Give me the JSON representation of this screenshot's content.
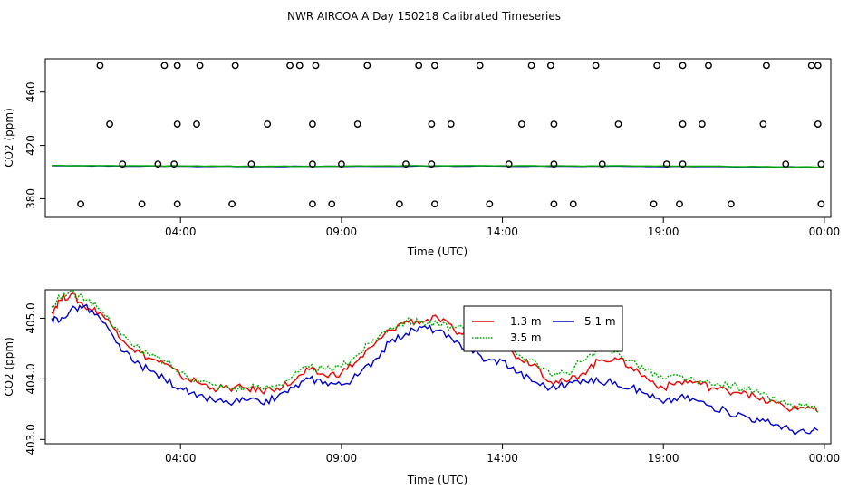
{
  "figure_title": "NWR AIRCOA A  Day 150218  Calibrated Timeseries",
  "chart_data": [
    {
      "type": "scatter",
      "title": "NWR AIRCOA A  Day 150218  Calibrated Timeseries",
      "xlabel": "Time (UTC)",
      "ylabel": "CO2 (ppm)",
      "xlim": [
        -0.2,
        24.2
      ],
      "ylim": [
        366,
        485
      ],
      "xticks": [
        4,
        9,
        14,
        19,
        24
      ],
      "xtick_labels": [
        "04:00",
        "09:00",
        "14:00",
        "19:00",
        "00:00"
      ],
      "yticks": [
        380,
        420,
        460
      ],
      "ytick_labels": [
        "380",
        "420",
        "460"
      ],
      "points": {
        "x": [
          1.5,
          3.5,
          4.6,
          5.7,
          7.7,
          8.2,
          9.8,
          11.4,
          13.3,
          14.9,
          16.9,
          18.8,
          20.4,
          22.2,
          0.9,
          2.8,
          3.9,
          5.6,
          8.1,
          8.7,
          10.8,
          11.9,
          13.6,
          15.6,
          16.2,
          18.7,
          19.5,
          21.1,
          23.9,
          2.2,
          3.3,
          3.8,
          6.2,
          8.1,
          9.0,
          11.0,
          11.8,
          14.2,
          15.6,
          17.1,
          19.1,
          19.6,
          22.8,
          23.9,
          1.8,
          3.9,
          4.5,
          6.7,
          8.1,
          9.5,
          11.8,
          12.4,
          14.6,
          15.6,
          17.6,
          19.6,
          20.2,
          22.1,
          23.8,
          3.9,
          7.4,
          11.9,
          15.5,
          19.6,
          23.6,
          23.8
        ],
        "y": [
          480,
          480,
          480,
          480,
          480,
          480,
          480,
          480,
          480,
          480,
          480,
          480,
          480,
          480,
          376,
          376,
          376,
          376,
          376,
          376,
          376,
          376,
          376,
          376,
          376,
          376,
          376,
          376,
          376,
          406,
          406,
          406,
          406,
          406,
          406,
          406,
          406,
          406,
          406,
          406,
          406,
          406,
          406,
          406,
          436,
          436,
          436,
          436,
          436,
          436,
          436,
          436,
          436,
          436,
          436,
          436,
          436,
          436,
          436,
          480,
          480,
          480,
          480,
          480,
          480,
          480
        ]
      },
      "series": [
        {
          "name": "5.1 m",
          "color": "#0000cc",
          "x": [
            0.0,
            2.0,
            4.0,
            6.0,
            8.0,
            10.0,
            12.0,
            14.0,
            16.0,
            18.0,
            20.0,
            22.0,
            24.0
          ],
          "values": [
            404.7,
            404.6,
            404.4,
            404.2,
            404.2,
            404.3,
            404.5,
            404.5,
            404.4,
            404.3,
            404.1,
            403.9,
            403.7
          ]
        },
        {
          "name": "3.5 m",
          "color": "#00aa00",
          "x": [
            0.0,
            2.0,
            4.0,
            6.0,
            8.0,
            10.0,
            12.0,
            14.0,
            16.0,
            18.0,
            20.0,
            22.0,
            24.0
          ],
          "values": [
            404.9,
            404.8,
            404.6,
            404.4,
            404.4,
            404.6,
            404.8,
            404.8,
            404.6,
            404.6,
            404.4,
            404.1,
            403.8
          ]
        }
      ]
    },
    {
      "type": "line",
      "xlabel": "Time (UTC)",
      "ylabel": "CO2 (ppm)",
      "xlim": [
        -0.2,
        24.2
      ],
      "ylim": [
        402.93,
        405.47
      ],
      "xticks": [
        4,
        9,
        14,
        19,
        24
      ],
      "xtick_labels": [
        "04:00",
        "09:00",
        "14:00",
        "19:00",
        "00:00"
      ],
      "yticks": [
        403.0,
        404.0,
        405.0
      ],
      "ytick_labels": [
        "403.0",
        "404.0",
        "405.0"
      ],
      "legend": {
        "placement": "top-center",
        "entries": [
          {
            "label": "1.3 m",
            "color": "#ee0000",
            "style": "solid"
          },
          {
            "label": "5.1 m",
            "color": "#0000cc",
            "style": "solid"
          },
          {
            "label": "3.5 m",
            "color": "#00aa00",
            "style": "dotted"
          }
        ]
      },
      "series": [
        {
          "name": "1.3 m",
          "color": "#ee0000",
          "x": [
            0.0,
            0.25,
            0.6,
            1.0,
            1.5,
            2.0,
            2.5,
            3.0,
            3.5,
            4.0,
            4.5,
            5.0,
            5.5,
            6.0,
            6.5,
            7.0,
            7.5,
            8.0,
            8.5,
            9.0,
            9.5,
            10.0,
            10.5,
            11.0,
            11.5,
            12.0,
            12.5,
            13.0,
            13.5,
            14.0,
            14.5,
            15.0,
            15.5,
            16.0,
            16.5,
            17.0,
            17.5,
            18.0,
            18.5,
            19.0,
            19.5,
            20.0,
            20.5,
            21.0,
            21.5,
            22.0,
            22.5,
            23.0,
            23.5,
            23.8
          ],
          "values": [
            405.1,
            405.3,
            405.4,
            405.2,
            405.1,
            404.8,
            404.5,
            404.35,
            404.25,
            404.05,
            403.95,
            403.85,
            403.85,
            403.85,
            403.8,
            403.85,
            403.95,
            404.15,
            404.05,
            404.1,
            404.3,
            404.55,
            404.8,
            404.95,
            404.95,
            405.0,
            404.8,
            404.7,
            404.55,
            404.55,
            404.35,
            404.25,
            403.95,
            403.95,
            404.1,
            404.3,
            404.35,
            404.2,
            404.0,
            403.85,
            403.95,
            403.95,
            403.85,
            403.8,
            403.8,
            403.65,
            403.6,
            403.5,
            403.55,
            403.45
          ]
        },
        {
          "name": "5.1 m",
          "color": "#0000cc",
          "x": [
            0.0,
            0.25,
            0.6,
            1.0,
            1.5,
            2.0,
            2.5,
            3.0,
            3.5,
            4.0,
            4.5,
            5.0,
            5.5,
            6.0,
            6.5,
            7.0,
            7.5,
            8.0,
            8.5,
            9.0,
            9.5,
            10.0,
            10.5,
            11.0,
            11.5,
            12.0,
            12.5,
            13.0,
            13.5,
            14.0,
            14.5,
            15.0,
            15.5,
            16.0,
            16.5,
            17.0,
            17.5,
            18.0,
            18.5,
            19.0,
            19.5,
            20.0,
            20.5,
            21.0,
            21.5,
            22.0,
            22.5,
            23.0,
            23.5,
            23.8
          ],
          "values": [
            405.0,
            404.95,
            405.15,
            405.2,
            405.0,
            404.6,
            404.3,
            404.15,
            404.0,
            403.85,
            403.7,
            403.65,
            403.6,
            403.65,
            403.6,
            403.7,
            403.85,
            404.0,
            403.95,
            403.9,
            404.05,
            404.3,
            404.6,
            404.75,
            404.85,
            404.8,
            404.6,
            404.5,
            404.3,
            404.3,
            404.1,
            403.95,
            403.85,
            403.9,
            404.0,
            403.95,
            403.95,
            403.85,
            403.75,
            403.6,
            403.7,
            403.65,
            403.55,
            403.45,
            403.4,
            403.3,
            403.25,
            403.15,
            403.1,
            403.15
          ]
        },
        {
          "name": "3.5 m",
          "color": "#00aa00",
          "x": [
            0.0,
            0.25,
            0.6,
            1.0,
            1.5,
            2.0,
            2.5,
            3.0,
            3.5,
            4.0,
            4.5,
            5.0,
            5.5,
            6.0,
            6.5,
            7.0,
            7.5,
            8.0,
            8.5,
            9.0,
            9.5,
            10.0,
            10.5,
            11.0,
            11.5,
            12.0,
            12.5,
            13.0,
            13.5,
            14.0,
            14.5,
            15.0,
            15.5,
            16.0,
            16.5,
            17.0,
            17.5,
            18.0,
            18.5,
            19.0,
            19.5,
            20.0,
            20.5,
            21.0,
            21.5,
            22.0,
            22.5,
            23.0,
            23.5,
            23.8
          ],
          "values": [
            405.2,
            405.35,
            405.45,
            405.3,
            405.15,
            404.85,
            404.55,
            404.4,
            404.3,
            404.1,
            404.0,
            403.9,
            403.85,
            403.85,
            403.85,
            403.9,
            404.05,
            404.2,
            404.15,
            404.2,
            404.4,
            404.65,
            404.85,
            404.95,
            404.95,
            404.9,
            404.85,
            404.8,
            404.6,
            404.6,
            404.4,
            404.3,
            404.05,
            404.1,
            404.3,
            404.45,
            404.45,
            404.3,
            404.15,
            404.0,
            404.05,
            403.95,
            403.9,
            403.9,
            403.85,
            403.75,
            403.65,
            403.55,
            403.55,
            403.45
          ]
        }
      ]
    }
  ]
}
